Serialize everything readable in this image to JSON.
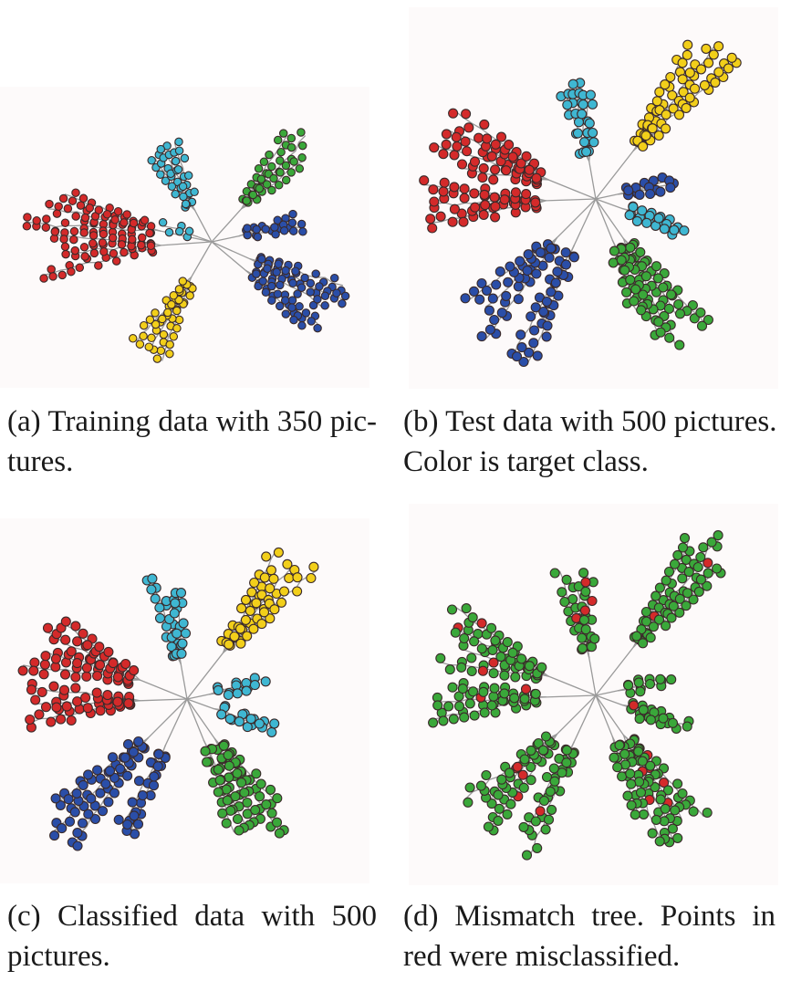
{
  "panels": [
    {
      "id": "a",
      "caption_line1": "(a) Training data with 350 pic-",
      "caption_line2": "tures."
    },
    {
      "id": "b",
      "caption_line1": "(b) Test data with 500 pictures.",
      "caption_line2": "Color is target class."
    },
    {
      "id": "c",
      "caption_line1": "(c) Classified data with 500",
      "caption_line2": "pictures."
    },
    {
      "id": "d",
      "caption_line1": "(d) Mismatch tree. Points in",
      "caption_line2": "red were misclassified."
    }
  ],
  "colors": {
    "red": "#d42a2a",
    "cyan": "#3fb7d2",
    "green": "#3aa83a",
    "blue": "#2a4ea8",
    "yellow": "#f2cf1a",
    "edge": "#9a9a9a",
    "background": "#fdfafa"
  }
}
